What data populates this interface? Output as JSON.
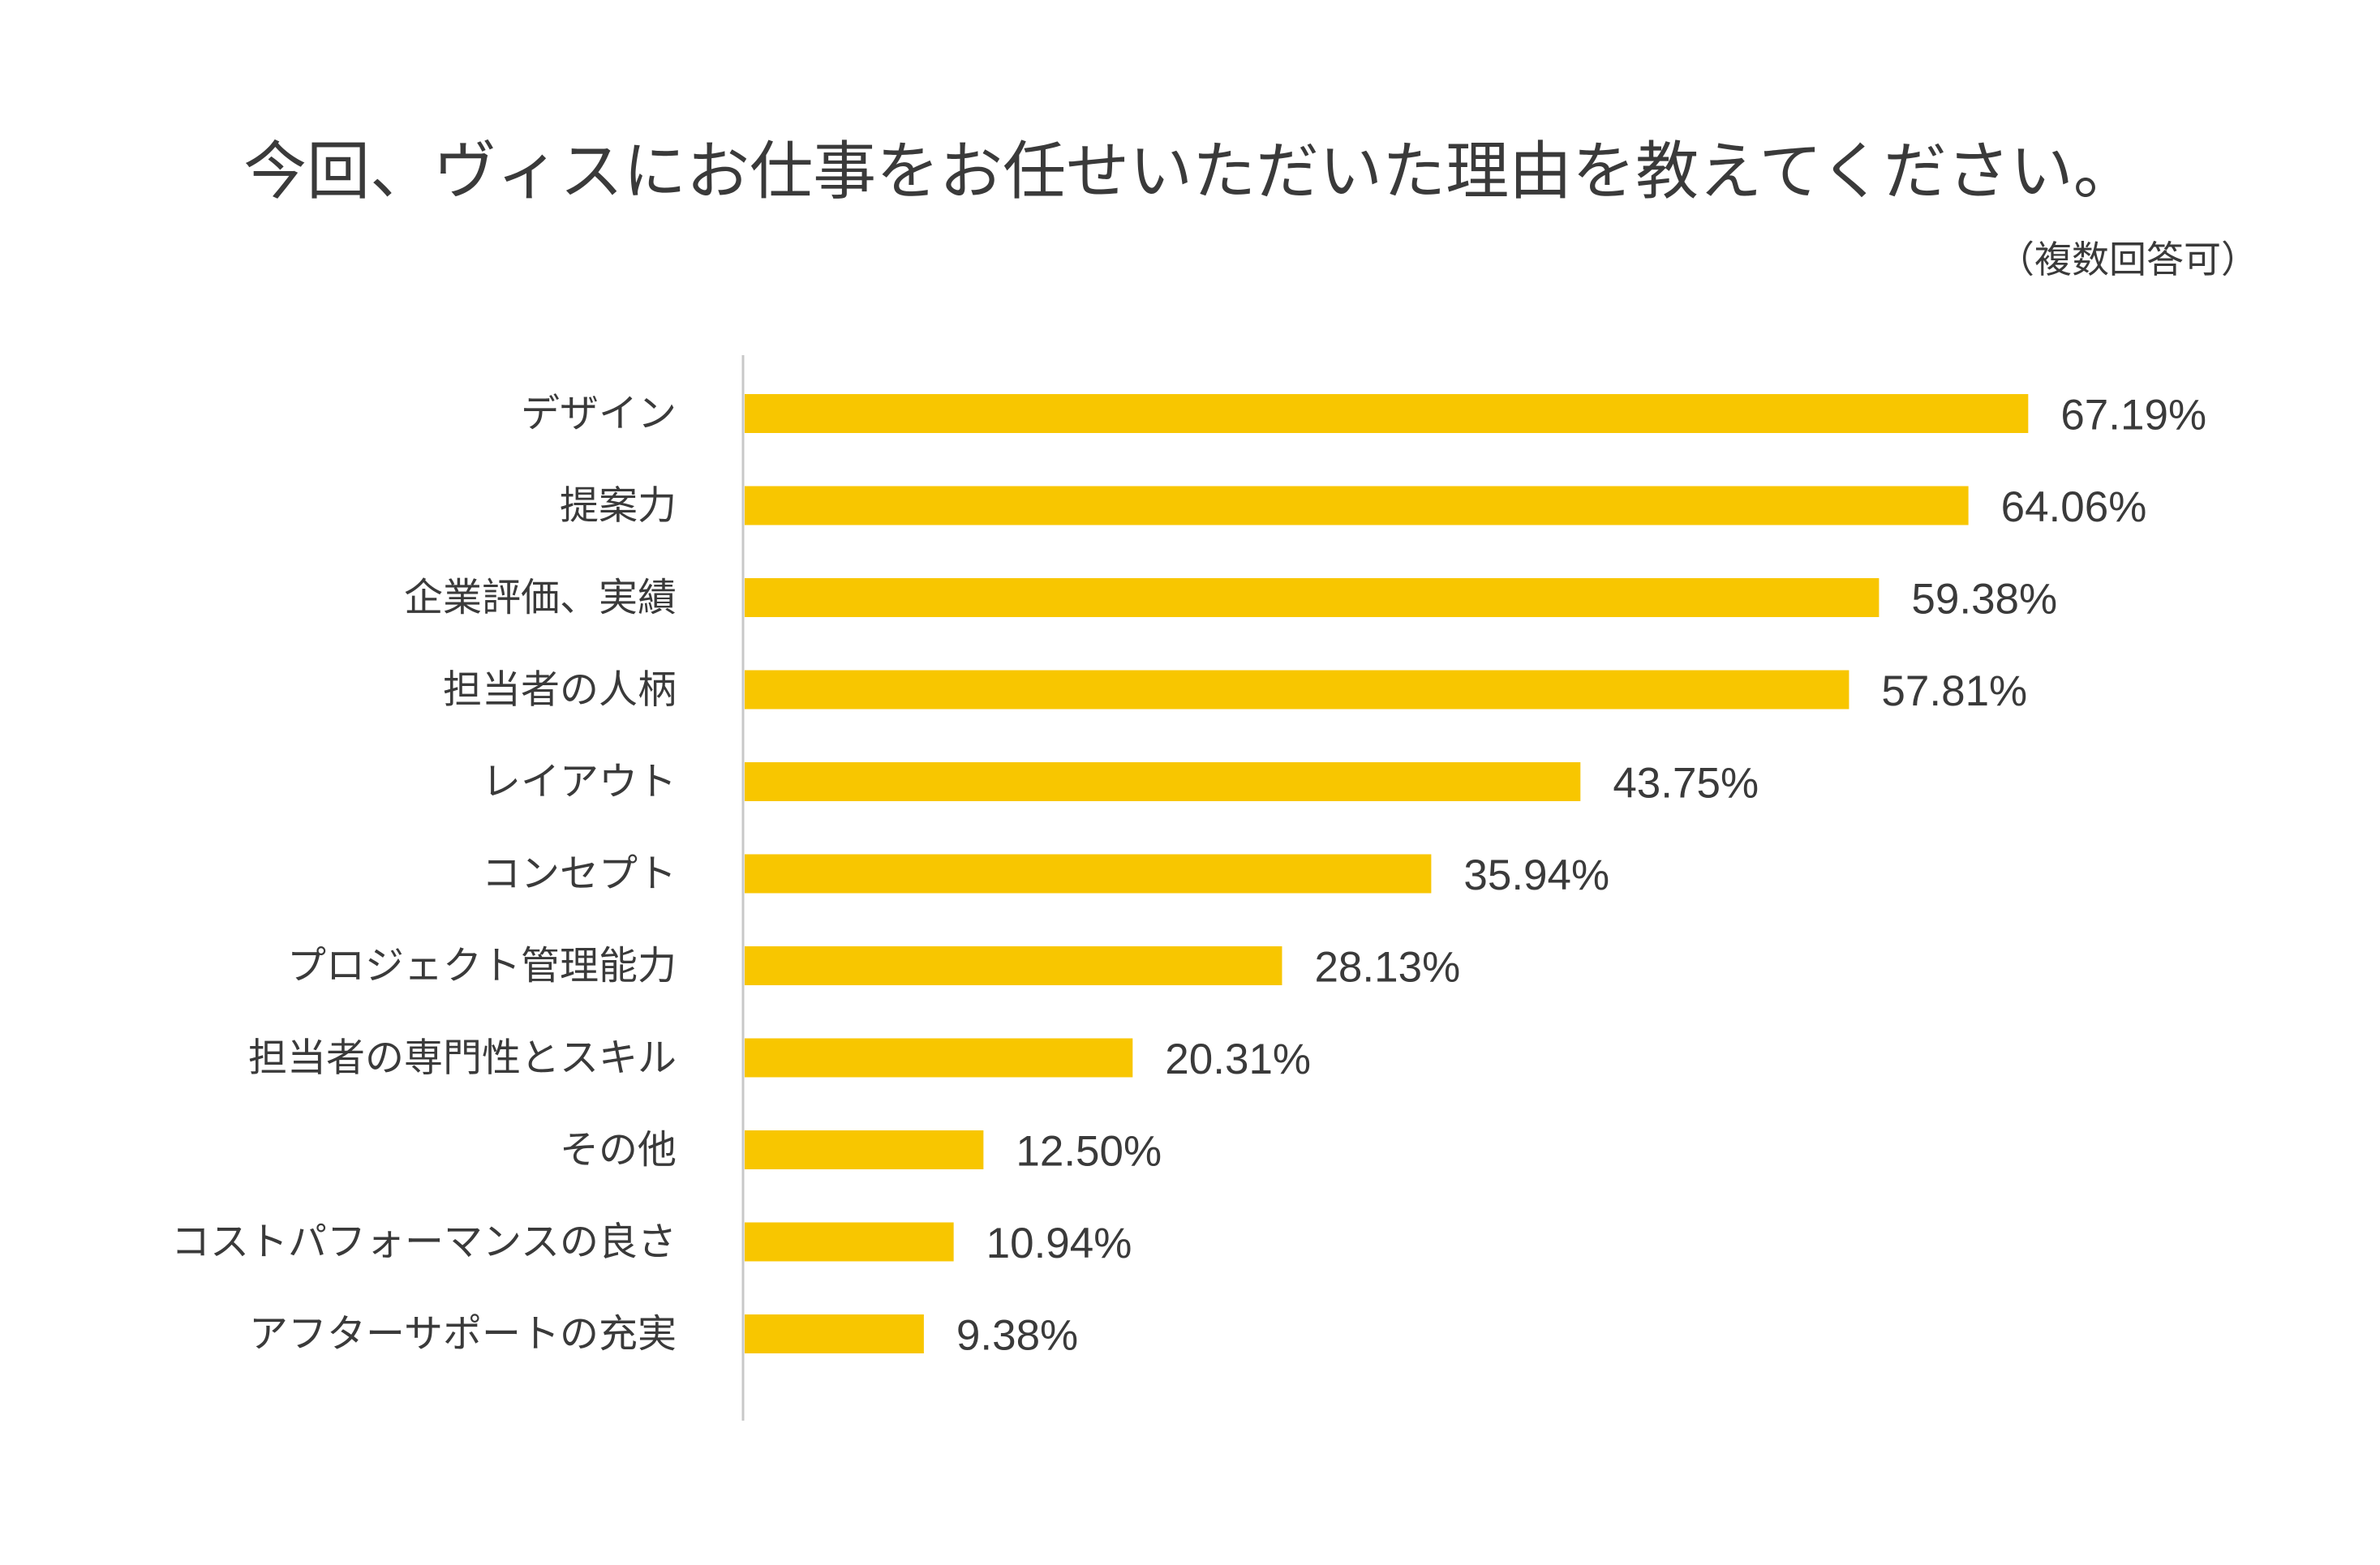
{
  "chart_data": {
    "type": "bar",
    "orientation": "horizontal",
    "title": "今回、ヴィスにお仕事をお任せいただいた理由を教えてください。",
    "subtitle": "（複数回答可）",
    "categories": [
      "デザイン",
      "提案力",
      "企業評価、実績",
      "担当者の人柄",
      "レイアウト",
      "コンセプト",
      "プロジェクト管理能力",
      "担当者の専門性とスキル",
      "その他",
      "コストパフォーマンスの良さ",
      "アフターサポートの充実"
    ],
    "values": [
      67.19,
      64.06,
      59.38,
      57.81,
      43.75,
      35.94,
      28.13,
      20.31,
      12.5,
      10.94,
      9.38
    ],
    "value_labels": [
      "67.19%",
      "64.06%",
      "59.38%",
      "57.81%",
      "43.75%",
      "35.94%",
      "28.13%",
      "20.31%",
      "12.50%",
      "10.94%",
      "9.38%"
    ],
    "xlim": [
      0,
      100
    ],
    "bar_color": "#f8c600",
    "axis_color": "#c8c8c8",
    "grid": false,
    "legend": "none"
  }
}
